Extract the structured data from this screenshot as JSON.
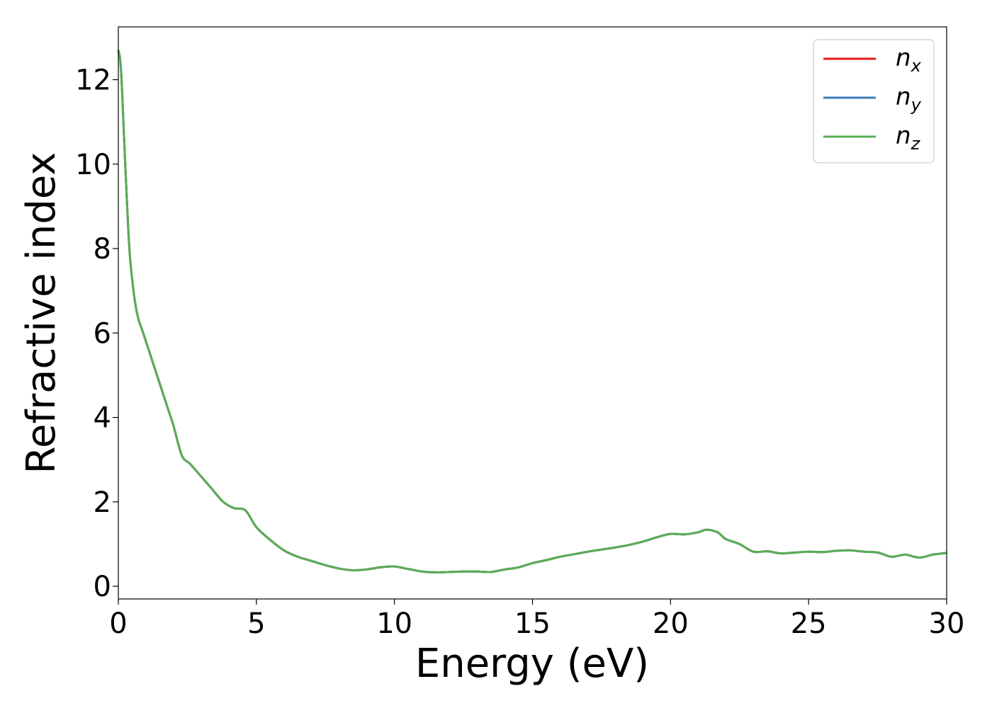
{
  "chart_data": {
    "type": "line",
    "xlabel": "Energy (eV)",
    "ylabel": "Refractive index",
    "xlim": [
      0,
      30
    ],
    "ylim": [
      -0.3,
      13.25
    ],
    "xticks": [
      0,
      5,
      10,
      15,
      20,
      25,
      30
    ],
    "yticks": [
      0,
      2,
      4,
      6,
      8,
      10,
      12
    ],
    "grid": false,
    "legend_position": "top-right",
    "series": [
      {
        "name": "n_x",
        "label_main": "n",
        "label_sub": "x",
        "color": "#e41a1c",
        "x": [
          0.0,
          0.1,
          0.25,
          0.4,
          0.55,
          0.7,
          0.9,
          1.2,
          1.5,
          1.8,
          2.0,
          2.3,
          2.6,
          3.0,
          3.4,
          3.8,
          4.2,
          4.6,
          5.0,
          5.5,
          6.0,
          6.5,
          7.0,
          7.5,
          8.0,
          8.5,
          9.0,
          9.5,
          10.0,
          10.5,
          11.0,
          11.5,
          12.0,
          12.5,
          13.0,
          13.5,
          14.0,
          14.5,
          15.0,
          15.5,
          16.0,
          16.5,
          17.0,
          17.5,
          18.0,
          18.5,
          19.0,
          19.5,
          20.0,
          20.5,
          21.0,
          21.3,
          21.7,
          22.0,
          22.5,
          23.0,
          23.5,
          24.0,
          24.5,
          25.0,
          25.5,
          26.0,
          26.5,
          27.0,
          27.5,
          28.0,
          28.5,
          29.0,
          29.5,
          30.0
        ],
        "y": [
          12.7,
          12.2,
          10.0,
          8.0,
          7.0,
          6.4,
          6.0,
          5.4,
          4.8,
          4.2,
          3.8,
          3.1,
          2.9,
          2.6,
          2.3,
          2.0,
          1.85,
          1.8,
          1.4,
          1.1,
          0.85,
          0.7,
          0.6,
          0.5,
          0.42,
          0.38,
          0.4,
          0.45,
          0.47,
          0.41,
          0.35,
          0.33,
          0.34,
          0.35,
          0.35,
          0.34,
          0.4,
          0.45,
          0.55,
          0.62,
          0.7,
          0.76,
          0.82,
          0.87,
          0.92,
          0.98,
          1.06,
          1.16,
          1.24,
          1.23,
          1.28,
          1.34,
          1.28,
          1.12,
          1.0,
          0.82,
          0.83,
          0.78,
          0.8,
          0.82,
          0.81,
          0.84,
          0.85,
          0.82,
          0.8,
          0.7,
          0.75,
          0.68,
          0.75,
          0.79
        ]
      },
      {
        "name": "n_y",
        "label_main": "n",
        "label_sub": "y",
        "color": "#377eb8",
        "x": [
          0.0,
          0.1,
          0.25,
          0.4,
          0.55,
          0.7,
          0.9,
          1.2,
          1.5,
          1.8,
          2.0,
          2.3,
          2.6,
          3.0,
          3.4,
          3.8,
          4.2,
          4.6,
          5.0,
          5.5,
          6.0,
          6.5,
          7.0,
          7.5,
          8.0,
          8.5,
          9.0,
          9.5,
          10.0,
          10.5,
          11.0,
          11.5,
          12.0,
          12.5,
          13.0,
          13.5,
          14.0,
          14.5,
          15.0,
          15.5,
          16.0,
          16.5,
          17.0,
          17.5,
          18.0,
          18.5,
          19.0,
          19.5,
          20.0,
          20.5,
          21.0,
          21.3,
          21.7,
          22.0,
          22.5,
          23.0,
          23.5,
          24.0,
          24.5,
          25.0,
          25.5,
          26.0,
          26.5,
          27.0,
          27.5,
          28.0,
          28.5,
          29.0,
          29.5,
          30.0
        ],
        "y": [
          12.7,
          12.2,
          10.0,
          8.0,
          7.0,
          6.4,
          6.0,
          5.4,
          4.8,
          4.2,
          3.8,
          3.1,
          2.9,
          2.6,
          2.3,
          2.0,
          1.85,
          1.8,
          1.4,
          1.1,
          0.85,
          0.7,
          0.6,
          0.5,
          0.42,
          0.38,
          0.4,
          0.45,
          0.47,
          0.41,
          0.35,
          0.33,
          0.34,
          0.35,
          0.35,
          0.34,
          0.4,
          0.45,
          0.55,
          0.62,
          0.7,
          0.76,
          0.82,
          0.87,
          0.92,
          0.98,
          1.06,
          1.16,
          1.24,
          1.23,
          1.28,
          1.34,
          1.28,
          1.12,
          1.0,
          0.82,
          0.83,
          0.78,
          0.8,
          0.82,
          0.81,
          0.84,
          0.85,
          0.82,
          0.8,
          0.7,
          0.75,
          0.68,
          0.75,
          0.79
        ]
      },
      {
        "name": "n_z",
        "label_main": "n",
        "label_sub": "z",
        "color": "#5aad55",
        "x": [
          0.0,
          0.1,
          0.25,
          0.4,
          0.55,
          0.7,
          0.9,
          1.2,
          1.5,
          1.8,
          2.0,
          2.3,
          2.6,
          3.0,
          3.4,
          3.8,
          4.2,
          4.6,
          5.0,
          5.5,
          6.0,
          6.5,
          7.0,
          7.5,
          8.0,
          8.5,
          9.0,
          9.5,
          10.0,
          10.5,
          11.0,
          11.5,
          12.0,
          12.5,
          13.0,
          13.5,
          14.0,
          14.5,
          15.0,
          15.5,
          16.0,
          16.5,
          17.0,
          17.5,
          18.0,
          18.5,
          19.0,
          19.5,
          20.0,
          20.5,
          21.0,
          21.3,
          21.7,
          22.0,
          22.5,
          23.0,
          23.5,
          24.0,
          24.5,
          25.0,
          25.5,
          26.0,
          26.5,
          27.0,
          27.5,
          28.0,
          28.5,
          29.0,
          29.5,
          30.0
        ],
        "y": [
          12.7,
          12.2,
          10.0,
          8.0,
          7.0,
          6.4,
          6.0,
          5.4,
          4.8,
          4.2,
          3.8,
          3.1,
          2.9,
          2.6,
          2.3,
          2.0,
          1.85,
          1.8,
          1.4,
          1.1,
          0.85,
          0.7,
          0.6,
          0.5,
          0.42,
          0.38,
          0.4,
          0.45,
          0.47,
          0.41,
          0.35,
          0.33,
          0.34,
          0.35,
          0.35,
          0.34,
          0.4,
          0.45,
          0.55,
          0.62,
          0.7,
          0.76,
          0.82,
          0.87,
          0.92,
          0.98,
          1.06,
          1.16,
          1.24,
          1.23,
          1.28,
          1.34,
          1.28,
          1.12,
          1.0,
          0.82,
          0.83,
          0.78,
          0.8,
          0.82,
          0.81,
          0.84,
          0.85,
          0.82,
          0.8,
          0.7,
          0.75,
          0.68,
          0.75,
          0.79
        ]
      }
    ]
  }
}
